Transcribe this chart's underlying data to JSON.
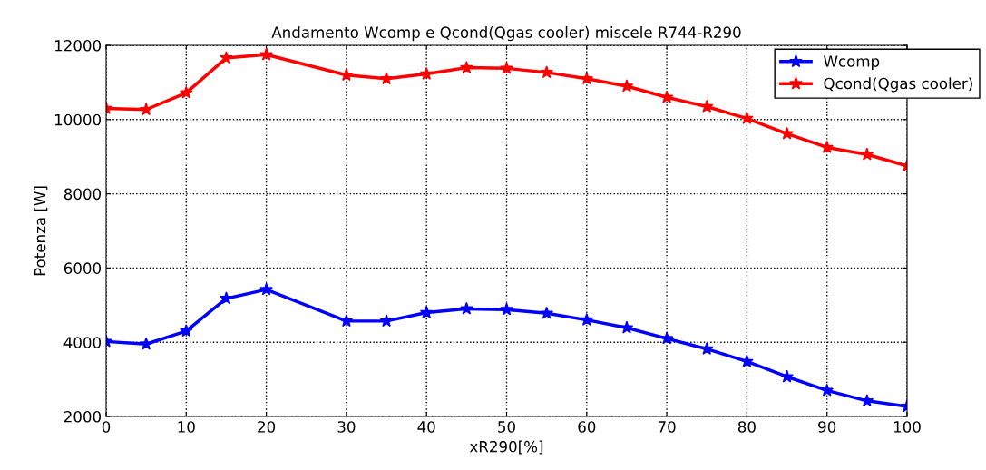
{
  "chart_data": {
    "type": "line",
    "title": "Andamento Wcomp e Qcond(Qgas cooler) miscele R744-R290",
    "xlabel": "xR290[%]",
    "ylabel": "Potenza [W]",
    "x": [
      0,
      5,
      10,
      15,
      20,
      30,
      35,
      40,
      45,
      50,
      55,
      60,
      65,
      70,
      75,
      80,
      85,
      90,
      95,
      100
    ],
    "series": [
      {
        "name": "Wcomp",
        "color": "#0000ff",
        "values": [
          4020,
          3950,
          4300,
          5180,
          5420,
          4570,
          4570,
          4800,
          4900,
          4880,
          4780,
          4600,
          4390,
          4100,
          3820,
          3480,
          3070,
          2700,
          2420,
          2270
        ]
      },
      {
        "name": "Qcond(Qgas cooler)",
        "color": "#ff0000",
        "values": [
          10300,
          10270,
          10720,
          11660,
          11750,
          11200,
          11100,
          11230,
          11400,
          11380,
          11270,
          11100,
          10900,
          10600,
          10350,
          10030,
          9620,
          9250,
          9060,
          8750
        ]
      }
    ],
    "xlim": [
      0,
      100
    ],
    "xticks": [
      0,
      10,
      20,
      30,
      40,
      50,
      60,
      70,
      80,
      90,
      100
    ],
    "ylim": [
      2000,
      12000
    ],
    "yticks": [
      2000,
      4000,
      6000,
      8000,
      10000,
      12000
    ],
    "grid": true,
    "legend": "top right",
    "marker": "star",
    "line_style": "solid"
  }
}
